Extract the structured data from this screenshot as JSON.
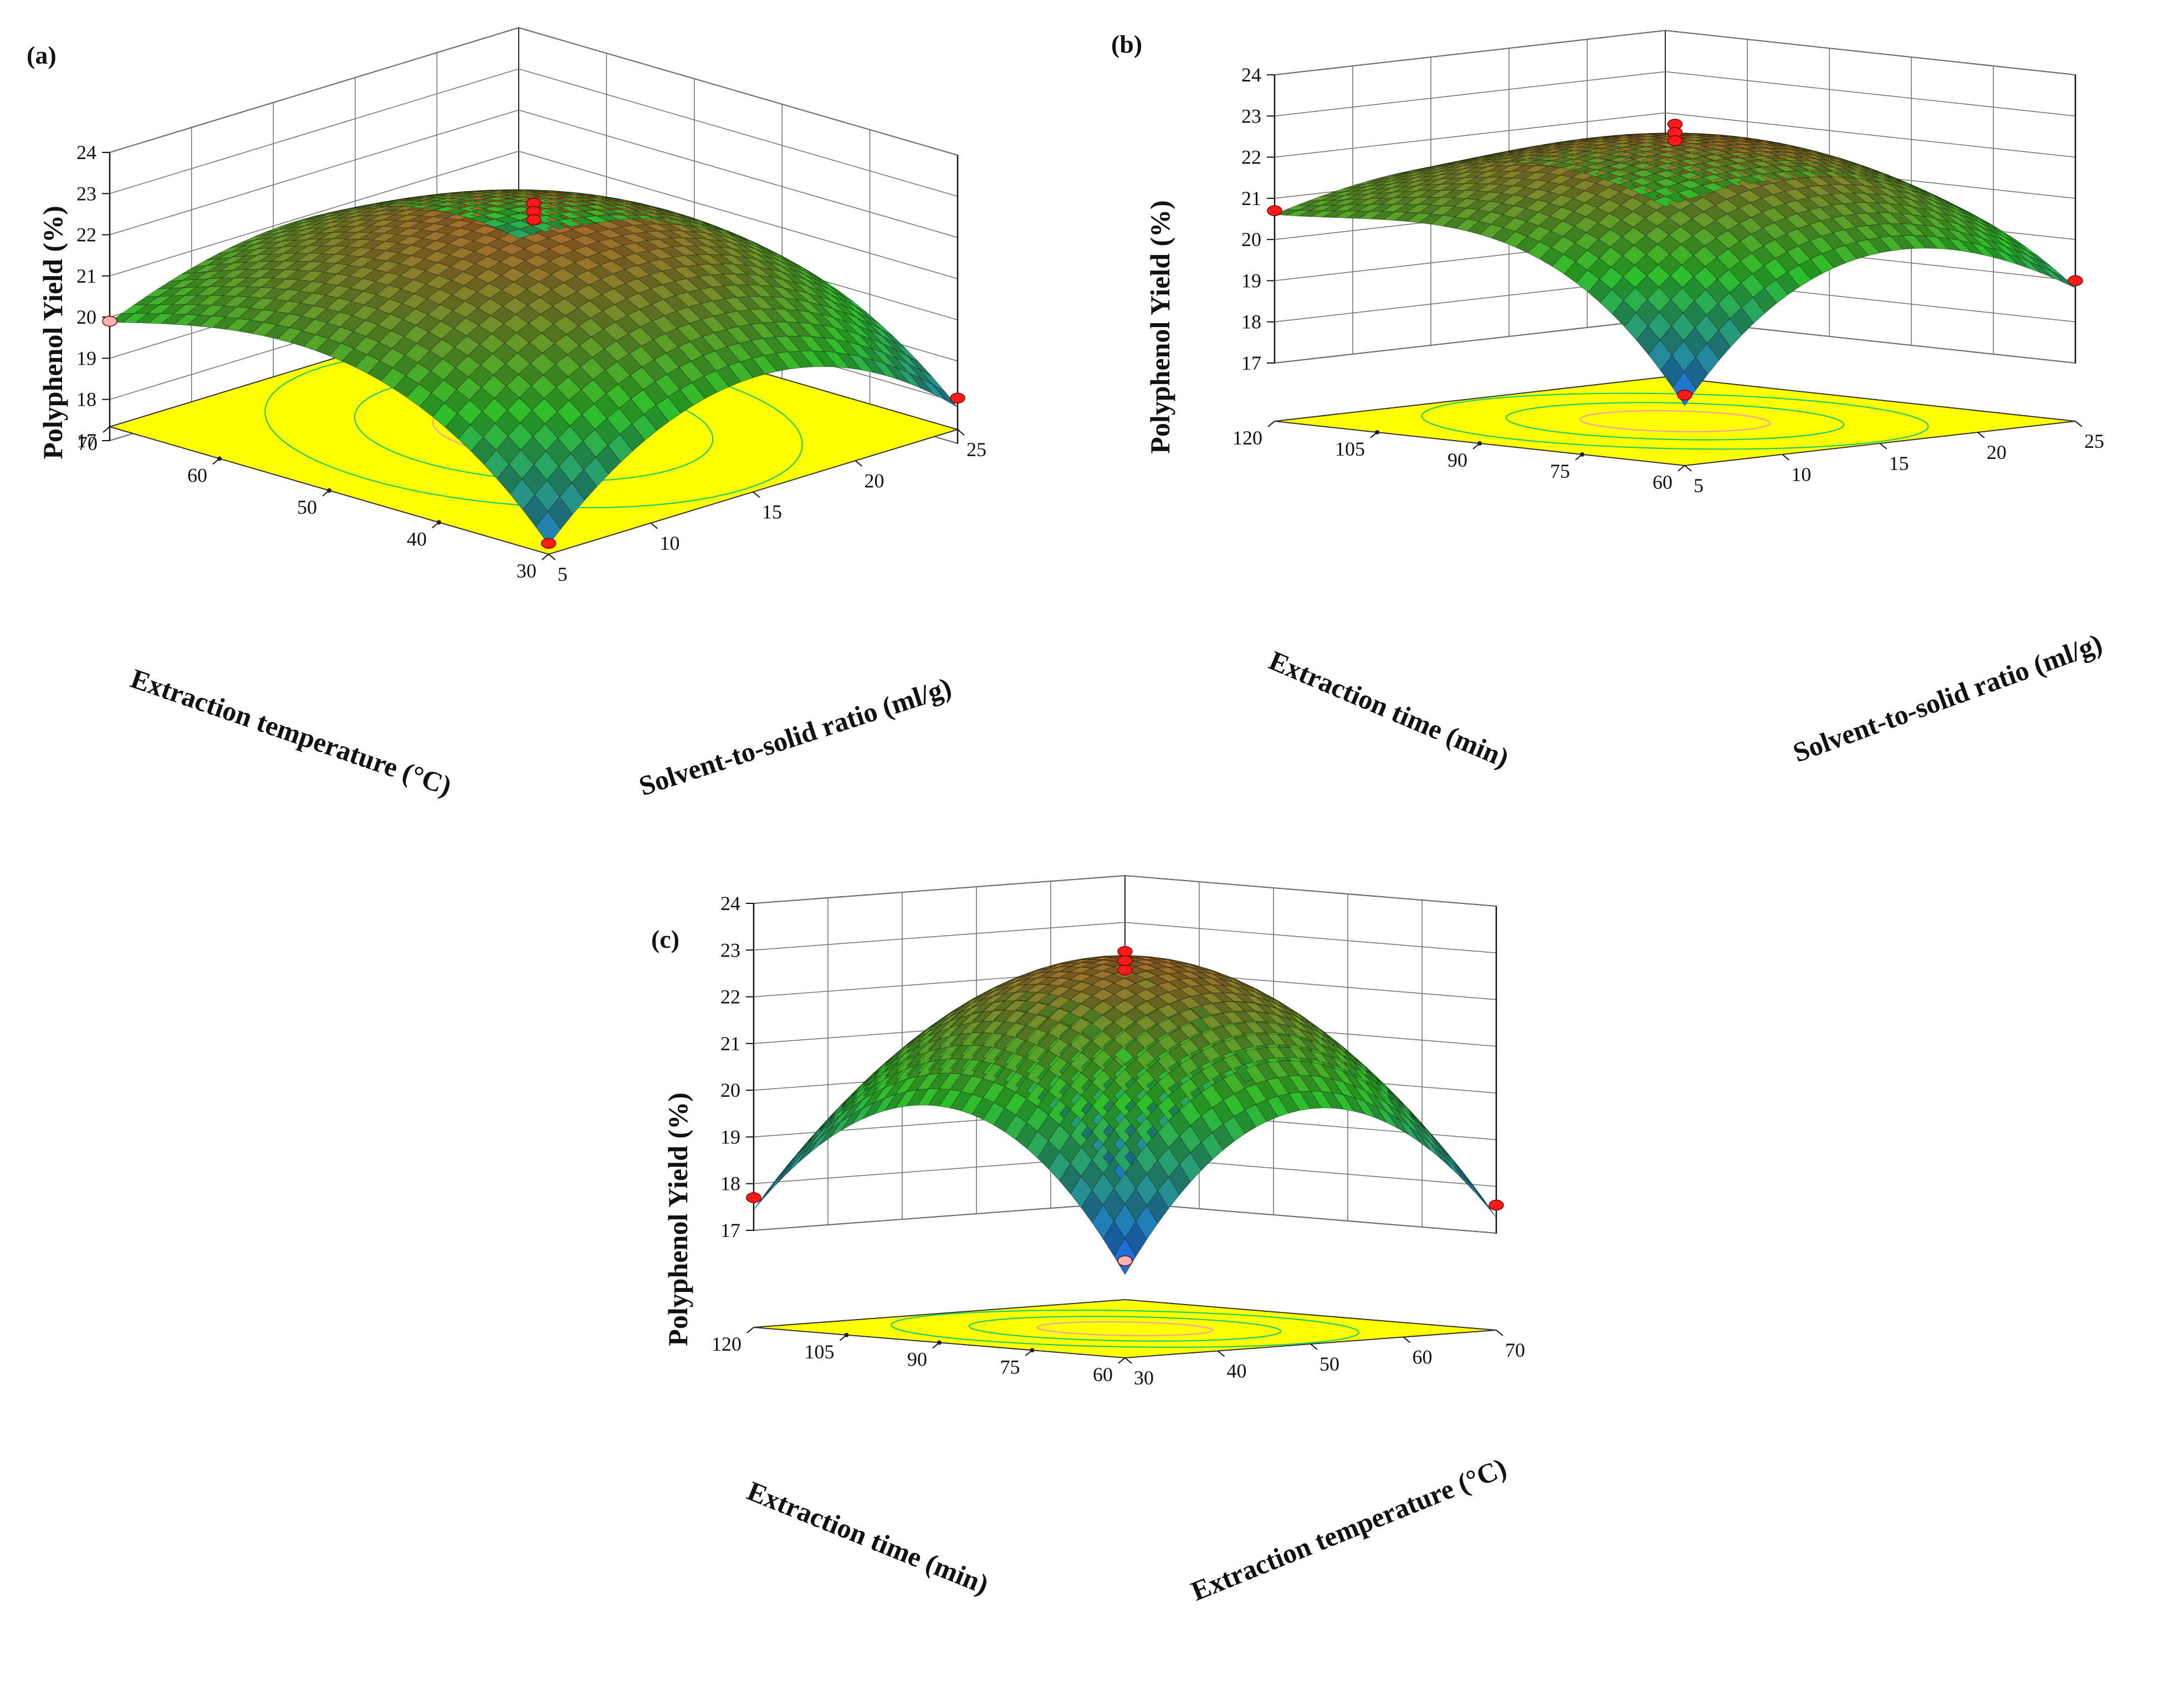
{
  "figure": {
    "panels": [
      "(a)",
      "(b)",
      "(c)"
    ]
  },
  "colors": {
    "contour_floor": "#ffff00",
    "surface_low": "#1e6fd9",
    "surface_mid": "#2fbf2a",
    "surface_high": "#b0642a",
    "design_point": "#ff1a1a",
    "design_point_hidden": "#ffb3b3"
  },
  "chart_data": [
    {
      "panel": "(a)",
      "type": "surface3d",
      "zlabel": "Polyphenol Yield (%)",
      "zticks": [
        "17",
        "18",
        "19",
        "20",
        "21",
        "22",
        "23",
        "24"
      ],
      "zlim": [
        17,
        24
      ],
      "xlabel": "Extraction temperature (°C)",
      "xticks": [
        "70",
        "60",
        "50",
        "40",
        "30"
      ],
      "xlim": [
        30,
        70
      ],
      "ylabel": "Solvent-to-solid ratio (ml/g)",
      "yticks": [
        "5",
        "10",
        "15",
        "20",
        "25"
      ],
      "ylim": [
        5,
        25
      ],
      "optimum": {
        "x": 50,
        "y": 15,
        "z": 22.5
      },
      "corner_values": {
        "left": 20.0,
        "right": 18.1,
        "front": 17.8
      },
      "design_points": [
        {
          "x": 50,
          "y": 15,
          "z": 22.8,
          "hidden": false
        },
        {
          "x": 50,
          "y": 15,
          "z": 22.6,
          "hidden": false
        },
        {
          "x": 50,
          "y": 15,
          "z": 22.4,
          "hidden": false
        },
        {
          "x": 70,
          "y": 5,
          "z": 19.9,
          "hidden": true
        },
        {
          "x": 30,
          "y": 25,
          "z": 18.1,
          "hidden": false
        },
        {
          "x": 30,
          "y": 5,
          "z": 17.6,
          "hidden": false
        }
      ]
    },
    {
      "panel": "(b)",
      "type": "surface3d",
      "zlabel": "Polyphenol Yield (%)",
      "zticks": [
        "17",
        "18",
        "19",
        "20",
        "21",
        "22",
        "23",
        "24"
      ],
      "zlim": [
        17,
        24
      ],
      "xlabel": "Extraction time (min)",
      "xticks": [
        "120",
        "105",
        "90",
        "75",
        "60"
      ],
      "xlim": [
        60,
        120
      ],
      "ylabel": "Solvent-to-solid ratio (ml/g)",
      "yticks": [
        "5",
        "10",
        "15",
        "20",
        "25"
      ],
      "ylim": [
        5,
        25
      ],
      "optimum": {
        "x": 90,
        "y": 15,
        "z": 22.5
      },
      "corner_values": {
        "left": 20.7,
        "right": 19.0,
        "front": 17.3
      },
      "design_points": [
        {
          "x": 90,
          "y": 15,
          "z": 22.8,
          "hidden": false
        },
        {
          "x": 90,
          "y": 15,
          "z": 22.6,
          "hidden": false
        },
        {
          "x": 90,
          "y": 15,
          "z": 22.4,
          "hidden": false
        },
        {
          "x": 120,
          "y": 5,
          "z": 20.7,
          "hidden": false
        },
        {
          "x": 60,
          "y": 25,
          "z": 19.0,
          "hidden": false
        },
        {
          "x": 60,
          "y": 5,
          "z": 17.3,
          "hidden": false
        }
      ]
    },
    {
      "panel": "(c)",
      "type": "surface3d",
      "zlabel": "Polyphenol Yield (%)",
      "zticks": [
        "17",
        "18",
        "19",
        "20",
        "21",
        "22",
        "23",
        "24"
      ],
      "zlim": [
        17,
        24
      ],
      "xlabel": "Extraction time (min)",
      "xticks": [
        "120",
        "105",
        "90",
        "75",
        "60"
      ],
      "xlim": [
        60,
        120
      ],
      "ylabel": "Extraction temperature (°C)",
      "yticks": [
        "30",
        "40",
        "50",
        "60",
        "70"
      ],
      "ylim": [
        30,
        70
      ],
      "optimum": {
        "x": 90,
        "y": 50,
        "z": 22.9
      },
      "corner_values": {
        "left": 17.7,
        "right": 17.6,
        "front": 17.0
      },
      "design_points": [
        {
          "x": 90,
          "y": 50,
          "z": 23.0,
          "hidden": false
        },
        {
          "x": 90,
          "y": 50,
          "z": 22.8,
          "hidden": false
        },
        {
          "x": 90,
          "y": 50,
          "z": 22.6,
          "hidden": false
        },
        {
          "x": 120,
          "y": 30,
          "z": 17.7,
          "hidden": false
        },
        {
          "x": 60,
          "y": 70,
          "z": 17.6,
          "hidden": false
        },
        {
          "x": 60,
          "y": 30,
          "z": 17.0,
          "hidden": true
        }
      ]
    }
  ]
}
